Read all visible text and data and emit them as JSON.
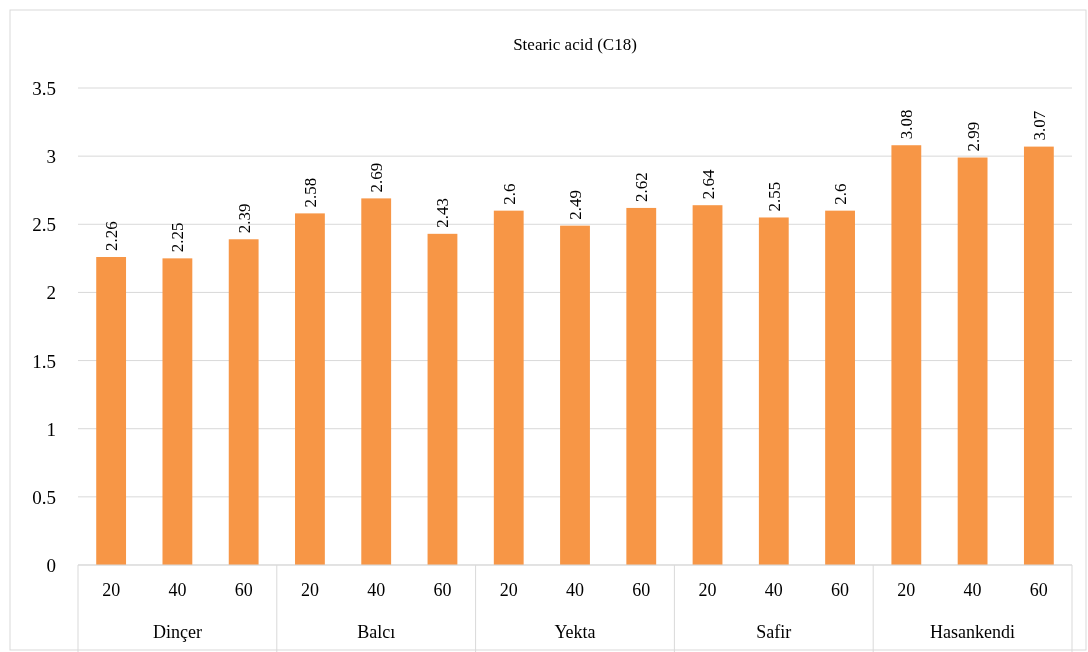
{
  "chart_data": {
    "type": "bar",
    "title": "Stearic acid (C18)",
    "categories": [
      "20",
      "40",
      "60",
      "20",
      "40",
      "60",
      "20",
      "40",
      "60",
      "20",
      "40",
      "60",
      "20",
      "40",
      "60"
    ],
    "values": [
      2.26,
      2.25,
      2.39,
      2.58,
      2.69,
      2.43,
      2.6,
      2.49,
      2.62,
      2.64,
      2.55,
      2.6,
      3.08,
      2.99,
      3.07
    ],
    "color": "#f79646",
    "annotations": [
      "Dinçer",
      "Balcı",
      "Yekta",
      "Safir",
      "Hasankendi"
    ],
    "ylim": [
      0,
      3.5
    ],
    "yticks": [
      0,
      0.5,
      1,
      1.5,
      2,
      2.5,
      3,
      3.5
    ],
    "grid": "y",
    "data_labels": true
  }
}
